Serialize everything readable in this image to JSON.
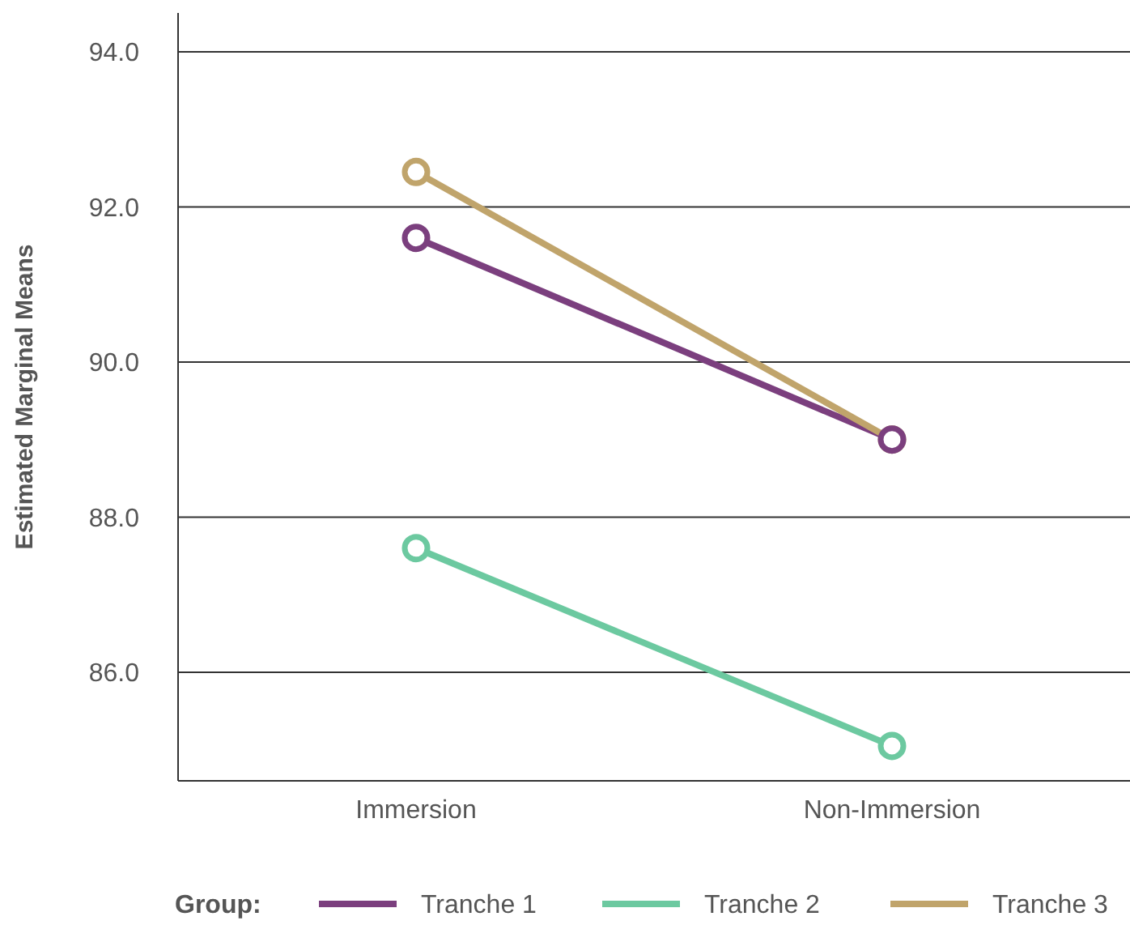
{
  "chart_data": {
    "type": "line",
    "ylabel": "Estimated Marginal Means",
    "legend_title": "Group:",
    "categories": [
      "Immersion",
      "Non-Immersion"
    ],
    "series": [
      {
        "name": "Tranche 1",
        "color": "#7b3f7e",
        "values": [
          91.6,
          89.0
        ]
      },
      {
        "name": "Tranche 2",
        "color": "#6cc9a0",
        "values": [
          87.6,
          85.05
        ]
      },
      {
        "name": "Tranche 3",
        "color": "#c0a46b",
        "values": [
          92.45,
          89.0
        ]
      }
    ],
    "ylim": [
      84.6,
      94.5
    ],
    "yticks": [
      {
        "value": 86,
        "label": "86.0"
      },
      {
        "value": 88,
        "label": "88.0"
      },
      {
        "value": 90,
        "label": "90.0"
      },
      {
        "value": 92,
        "label": "92.0"
      },
      {
        "value": 94,
        "label": "94.0"
      }
    ],
    "grid": "y",
    "legend": "bottom",
    "marker": "circle",
    "line_style": "solid"
  }
}
